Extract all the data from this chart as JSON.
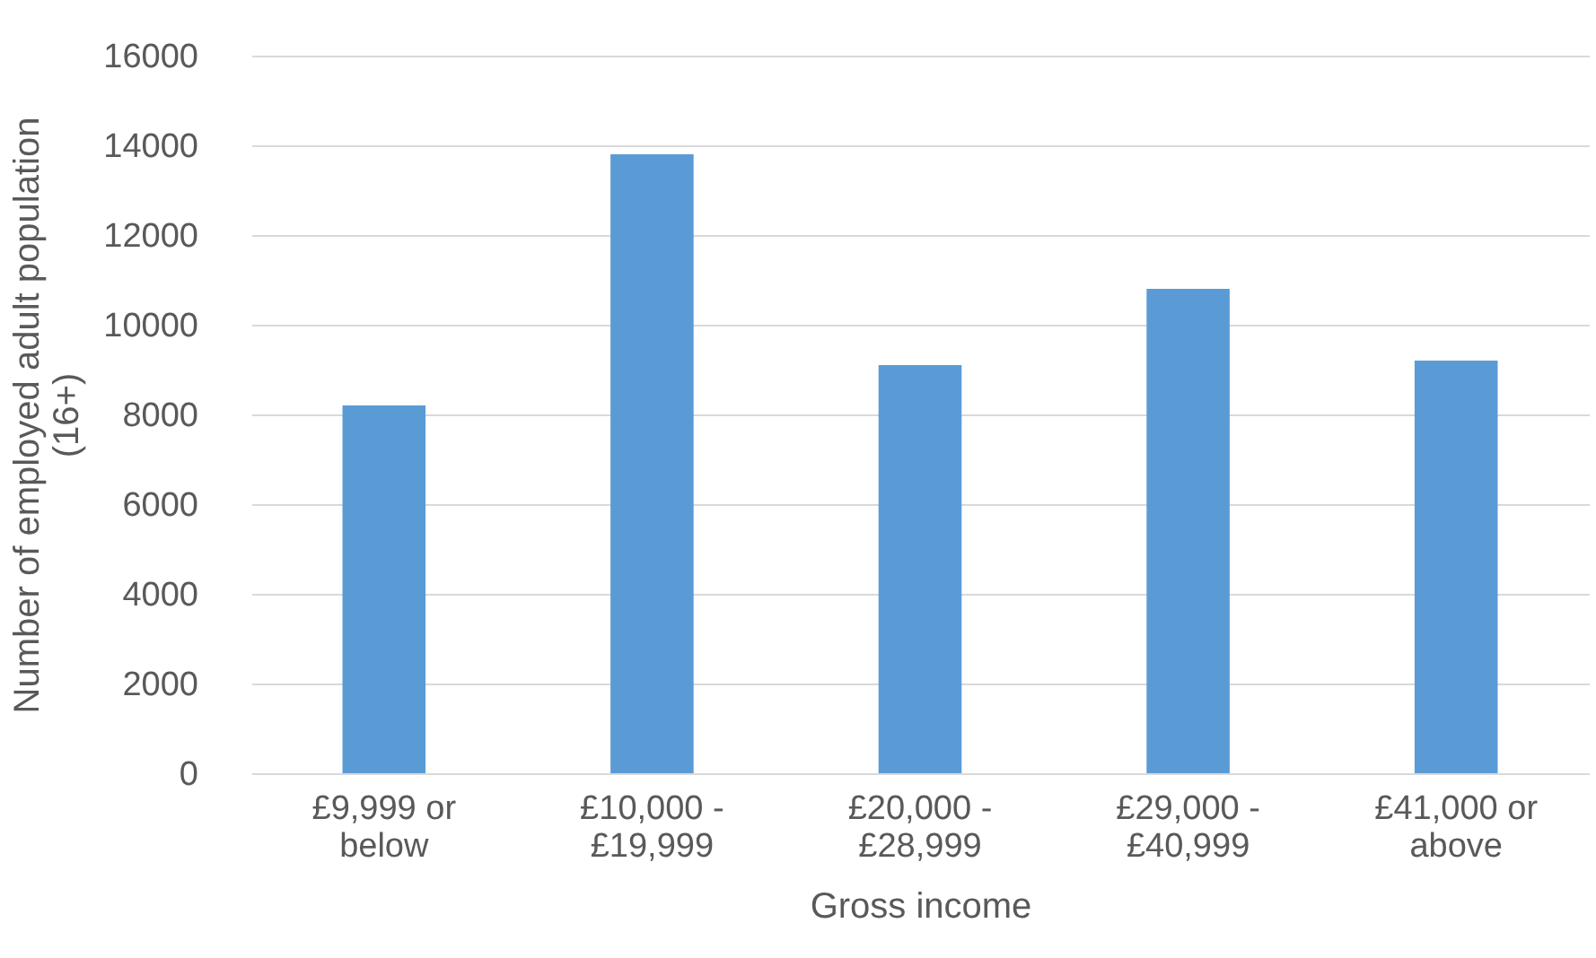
{
  "chart_data": {
    "type": "bar",
    "xlabel": "Gross income",
    "ylabel": "Number of employed adult population (16+)",
    "categories": [
      "£9,999 or below",
      "£10,000 - £19,999",
      "£20,000 - £28,999",
      "£29,000 - £40,999",
      "£41,000 or above"
    ],
    "values": [
      8200,
      13800,
      9100,
      10800,
      9200
    ],
    "color": "#5b9bd5",
    "ylim": [
      0,
      16000
    ],
    "yticks": [
      0,
      2000,
      4000,
      6000,
      8000,
      10000,
      12000,
      14000,
      16000
    ],
    "grid": "y"
  }
}
